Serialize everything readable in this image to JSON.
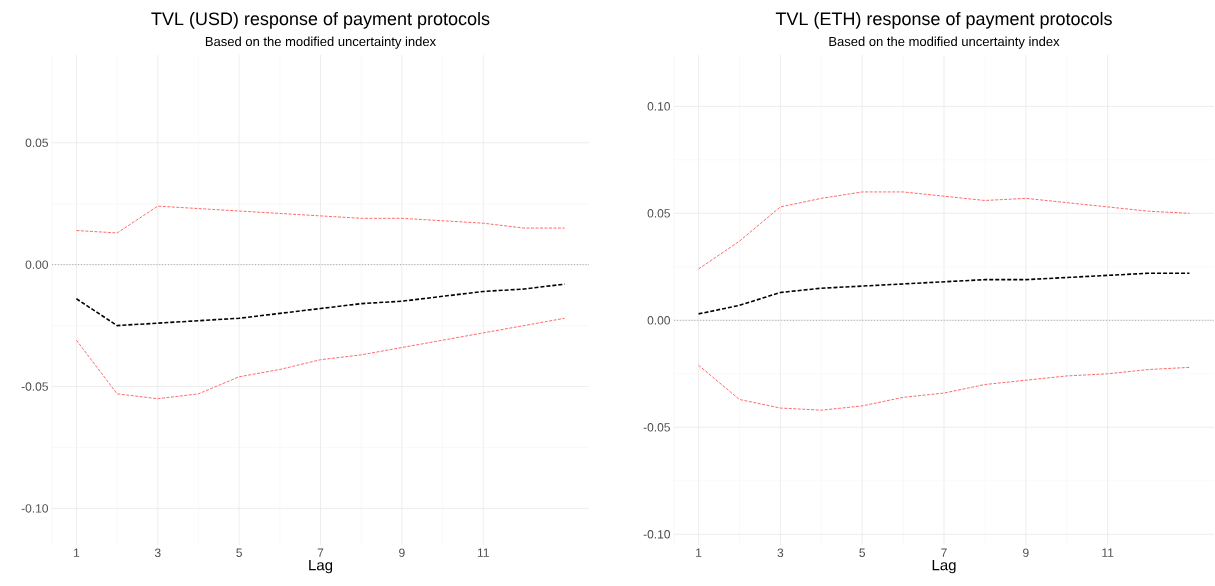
{
  "chart_data": [
    {
      "type": "line",
      "title": "TVL (USD) response of payment protocols",
      "subtitle": "Based on the modified uncertainty index",
      "xlabel": "Lag",
      "x": [
        1,
        2,
        3,
        4,
        5,
        6,
        7,
        8,
        9,
        10,
        11,
        12,
        13
      ],
      "series": [
        {
          "color": "#000000",
          "line_style": "dashed",
          "values": [
            -0.014,
            -0.025,
            -0.024,
            -0.023,
            -0.022,
            -0.02,
            -0.018,
            -0.016,
            -0.015,
            -0.013,
            -0.011,
            -0.01,
            -0.008
          ]
        },
        {
          "color": "#ff5a5a",
          "line_style": "dashed",
          "values": [
            0.014,
            0.013,
            0.024,
            0.023,
            0.022,
            0.021,
            0.02,
            0.019,
            0.019,
            0.018,
            0.017,
            0.015,
            0.015
          ]
        },
        {
          "color": "#ff5a5a",
          "line_style": "dashed",
          "values": [
            -0.031,
            -0.053,
            -0.055,
            -0.053,
            -0.046,
            -0.043,
            -0.039,
            -0.037,
            -0.034,
            -0.031,
            -0.028,
            -0.025,
            -0.022
          ]
        }
      ],
      "xlim": [
        0.4,
        13.6
      ],
      "ylim": [
        -0.115,
        0.086
      ],
      "xticks": [
        1,
        3,
        5,
        7,
        9,
        11
      ],
      "yticks": [
        {
          "value": -0.1,
          "label": "-0.10"
        },
        {
          "value": -0.05,
          "label": "-0.05"
        },
        {
          "value": 0,
          "label": "0.00"
        },
        {
          "value": 0.05,
          "label": "0.05"
        }
      ],
      "grid": true,
      "ref_lines": [
        {
          "axis": "y",
          "value": 0,
          "color": "#999999",
          "line_style": "dotted"
        }
      ]
    },
    {
      "type": "line",
      "title": "TVL (ETH) response of payment protocols",
      "subtitle": "Based on the modified uncertainty index",
      "xlabel": "Lag",
      "x": [
        1,
        2,
        3,
        4,
        5,
        6,
        7,
        8,
        9,
        10,
        11,
        12,
        13
      ],
      "series": [
        {
          "color": "#000000",
          "line_style": "dashed",
          "values": [
            0.003,
            0.007,
            0.013,
            0.015,
            0.016,
            0.017,
            0.018,
            0.019,
            0.019,
            0.02,
            0.021,
            0.022,
            0.022
          ]
        },
        {
          "color": "#ff5a5a",
          "line_style": "dashed",
          "values": [
            0.024,
            0.037,
            0.053,
            0.057,
            0.06,
            0.06,
            0.058,
            0.056,
            0.057,
            0.055,
            0.053,
            0.051,
            0.05
          ]
        },
        {
          "color": "#ff5a5a",
          "line_style": "dashed",
          "values": [
            -0.021,
            -0.037,
            -0.041,
            -0.042,
            -0.04,
            -0.036,
            -0.034,
            -0.03,
            -0.028,
            -0.026,
            -0.025,
            -0.023,
            -0.022
          ]
        }
      ],
      "xlim": [
        0.4,
        13.6
      ],
      "ylim": [
        -0.105,
        0.124
      ],
      "xticks": [
        1,
        3,
        5,
        7,
        9,
        11
      ],
      "yticks": [
        {
          "value": -0.1,
          "label": "-0.10"
        },
        {
          "value": -0.05,
          "label": "-0.05"
        },
        {
          "value": 0,
          "label": "0.00"
        },
        {
          "value": 0.05,
          "label": "0.05"
        },
        {
          "value": 0.1,
          "label": "0.10"
        }
      ],
      "grid": true,
      "ref_lines": [
        {
          "axis": "y",
          "value": 0,
          "color": "#999999",
          "line_style": "dotted"
        }
      ]
    }
  ]
}
